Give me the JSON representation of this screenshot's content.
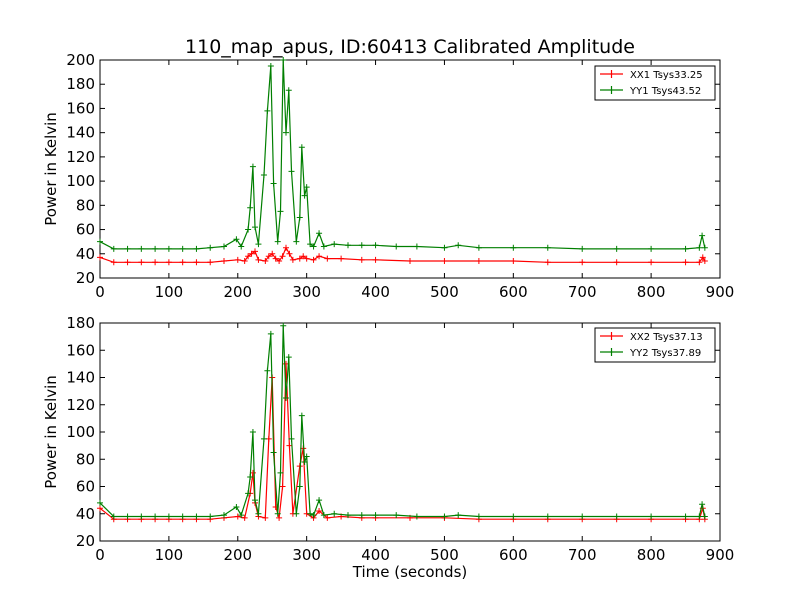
{
  "title": "110_map_apus, ID:60413 Calibrated Amplitude",
  "colors": {
    "xx": "#ff0000",
    "yy": "#007f00",
    "axis": "#000000"
  },
  "chart_data": [
    {
      "type": "line",
      "ylabel": "Power in Kelvin",
      "xlabel": "",
      "xlim": [
        0,
        900
      ],
      "ylim": [
        20,
        200
      ],
      "xticks": [
        "0",
        "100",
        "200",
        "300",
        "400",
        "500",
        "600",
        "700",
        "800",
        "900"
      ],
      "yticks": [
        "20",
        "40",
        "60",
        "80",
        "100",
        "120",
        "140",
        "160",
        "180",
        "200"
      ],
      "legend_position": "top-right",
      "series": [
        {
          "name": "XX1 Tsys33.25",
          "color": "#ff0000",
          "x": [
            0,
            20,
            40,
            60,
            80,
            100,
            120,
            140,
            160,
            180,
            200,
            210,
            215,
            220,
            225,
            230,
            240,
            245,
            250,
            255,
            260,
            265,
            270,
            275,
            280,
            290,
            295,
            300,
            310,
            318,
            330,
            350,
            380,
            400,
            450,
            500,
            550,
            600,
            650,
            700,
            750,
            800,
            850,
            870,
            875,
            878
          ],
          "y": [
            37,
            33,
            33,
            33,
            33,
            33,
            33,
            33,
            33,
            34,
            35,
            34,
            38,
            40,
            42,
            35,
            34,
            38,
            40,
            36,
            34,
            38,
            45,
            40,
            35,
            36,
            38,
            36,
            35,
            38,
            36,
            36,
            35,
            35,
            34,
            34,
            34,
            34,
            33,
            33,
            33,
            33,
            33,
            33,
            37,
            34
          ]
        },
        {
          "name": "YY1 Tsys43.52",
          "color": "#007f00",
          "x": [
            0,
            20,
            40,
            60,
            80,
            100,
            120,
            140,
            160,
            180,
            198,
            205,
            215,
            218,
            222,
            225,
            230,
            238,
            243,
            248,
            252,
            258,
            262,
            266,
            270,
            274,
            278,
            285,
            290,
            293,
            297,
            300,
            305,
            310,
            318,
            325,
            340,
            360,
            380,
            400,
            430,
            460,
            500,
            520,
            550,
            600,
            650,
            700,
            750,
            800,
            850,
            870,
            874,
            878
          ],
          "y": [
            50,
            44,
            44,
            44,
            44,
            44,
            44,
            44,
            45,
            46,
            52,
            46,
            60,
            78,
            112,
            62,
            48,
            105,
            158,
            195,
            98,
            50,
            75,
            200,
            140,
            175,
            108,
            50,
            70,
            128,
            88,
            95,
            48,
            46,
            57,
            46,
            48,
            47,
            47,
            47,
            46,
            46,
            45,
            47,
            45,
            45,
            45,
            44,
            44,
            44,
            44,
            45,
            55,
            45
          ]
        }
      ]
    },
    {
      "type": "line",
      "ylabel": "Power in Kelvin",
      "xlabel": "Time (seconds)",
      "xlim": [
        0,
        900
      ],
      "ylim": [
        20,
        180
      ],
      "xticks": [
        "0",
        "100",
        "200",
        "300",
        "400",
        "500",
        "600",
        "700",
        "800",
        "900"
      ],
      "yticks": [
        "20",
        "40",
        "60",
        "80",
        "100",
        "120",
        "140",
        "160",
        "180"
      ],
      "legend_position": "top-right",
      "series": [
        {
          "name": "XX2 Tsys37.13",
          "color": "#ff0000",
          "x": [
            0,
            20,
            40,
            60,
            80,
            100,
            120,
            140,
            160,
            180,
            200,
            210,
            218,
            222,
            225,
            230,
            240,
            245,
            250,
            255,
            260,
            265,
            270,
            275,
            280,
            290,
            295,
            300,
            310,
            318,
            330,
            350,
            380,
            400,
            450,
            500,
            550,
            600,
            650,
            700,
            750,
            800,
            850,
            870,
            875,
            878
          ],
          "y": [
            44,
            36,
            36,
            36,
            36,
            36,
            36,
            36,
            36,
            37,
            38,
            37,
            55,
            70,
            48,
            38,
            37,
            95,
            140,
            45,
            37,
            60,
            150,
            90,
            40,
            75,
            88,
            40,
            37,
            42,
            37,
            38,
            37,
            37,
            37,
            37,
            36,
            36,
            36,
            36,
            36,
            36,
            36,
            36,
            44,
            36
          ]
        },
        {
          "name": "YY2 Tsys37.89",
          "color": "#007f00",
          "x": [
            0,
            20,
            40,
            60,
            80,
            100,
            120,
            140,
            160,
            180,
            198,
            205,
            215,
            218,
            222,
            225,
            230,
            238,
            243,
            248,
            252,
            258,
            262,
            266,
            270,
            274,
            278,
            285,
            290,
            293,
            297,
            300,
            305,
            310,
            318,
            325,
            340,
            360,
            380,
            400,
            430,
            460,
            500,
            520,
            550,
            600,
            650,
            700,
            750,
            800,
            850,
            870,
            874,
            878
          ],
          "y": [
            48,
            38,
            38,
            38,
            38,
            38,
            38,
            38,
            38,
            39,
            45,
            39,
            55,
            67,
            100,
            50,
            40,
            95,
            145,
            172,
            85,
            40,
            70,
            178,
            125,
            155,
            95,
            40,
            60,
            112,
            78,
            82,
            40,
            39,
            50,
            39,
            40,
            39,
            39,
            39,
            39,
            38,
            38,
            39,
            38,
            38,
            38,
            38,
            38,
            38,
            38,
            38,
            47,
            38
          ]
        }
      ]
    }
  ]
}
